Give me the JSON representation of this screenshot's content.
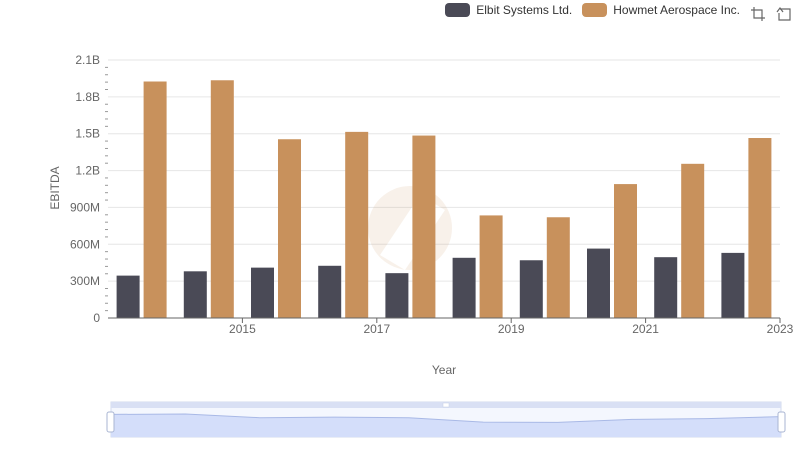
{
  "legend": {
    "items": [
      {
        "label": "Elbit Systems Ltd.",
        "color": "#4a4a56"
      },
      {
        "label": "Howmet Aerospace Inc.",
        "color": "#c8915c"
      }
    ]
  },
  "toolbox": {
    "icons": [
      "zoom-icon",
      "restore-icon"
    ]
  },
  "chart_data": {
    "type": "bar",
    "categories": [
      "2014",
      "2015",
      "2016",
      "2017",
      "2018",
      "2019",
      "2020",
      "2021",
      "2022",
      "2023"
    ],
    "x_tick_labels": [
      "",
      "2015",
      "",
      "2017",
      "",
      "2019",
      "",
      "2021",
      "",
      "2023"
    ],
    "series": [
      {
        "name": "Elbit Systems Ltd.",
        "color": "#4a4a56",
        "values": [
          345000000,
          380000000,
          410000000,
          425000000,
          365000000,
          490000000,
          470000000,
          565000000,
          495000000,
          530000000
        ]
      },
      {
        "name": "Howmet Aerospace Inc.",
        "color": "#c8915c",
        "values": [
          1925000000,
          1935000000,
          1455000000,
          1515000000,
          1485000000,
          835000000,
          820000000,
          1090000000,
          1255000000,
          1465000000
        ]
      }
    ],
    "ylabel": "EBITDA",
    "xlabel": "Year",
    "ylim": [
      0,
      2100000000
    ],
    "yticks": [
      0,
      300000000,
      600000000,
      900000000,
      1200000000,
      1500000000,
      1800000000,
      2100000000
    ],
    "ytick_labels": [
      "0",
      "300M",
      "600M",
      "900M",
      "1.2B",
      "1.5B",
      "1.8B",
      "2.1B"
    ],
    "grid": true,
    "legend_position": "top-right",
    "datazoom": {
      "start": 0,
      "end": 100
    }
  }
}
